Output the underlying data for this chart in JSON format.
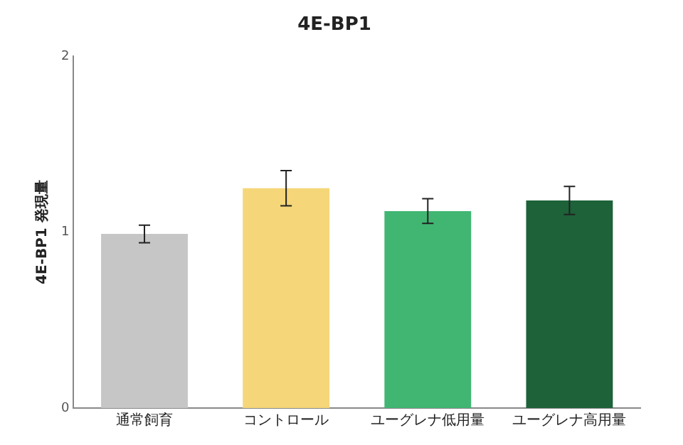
{
  "chart_data": {
    "type": "bar",
    "title": "4E-BP1",
    "ylabel": "4E-BP1 発現量",
    "categories": [
      "通常飼育",
      "コントロール",
      "ユーグレナ低用量",
      "ユーグレナ高用量"
    ],
    "values": [
      0.99,
      1.25,
      1.12,
      1.18
    ],
    "errors": [
      0.05,
      0.1,
      0.07,
      0.08
    ],
    "colors": [
      "#c6c6c6",
      "#f5d679",
      "#41b673",
      "#1d6239"
    ],
    "ylim": [
      0,
      2
    ],
    "yticks": [
      0,
      1,
      2
    ],
    "grid": false,
    "legend": false
  }
}
